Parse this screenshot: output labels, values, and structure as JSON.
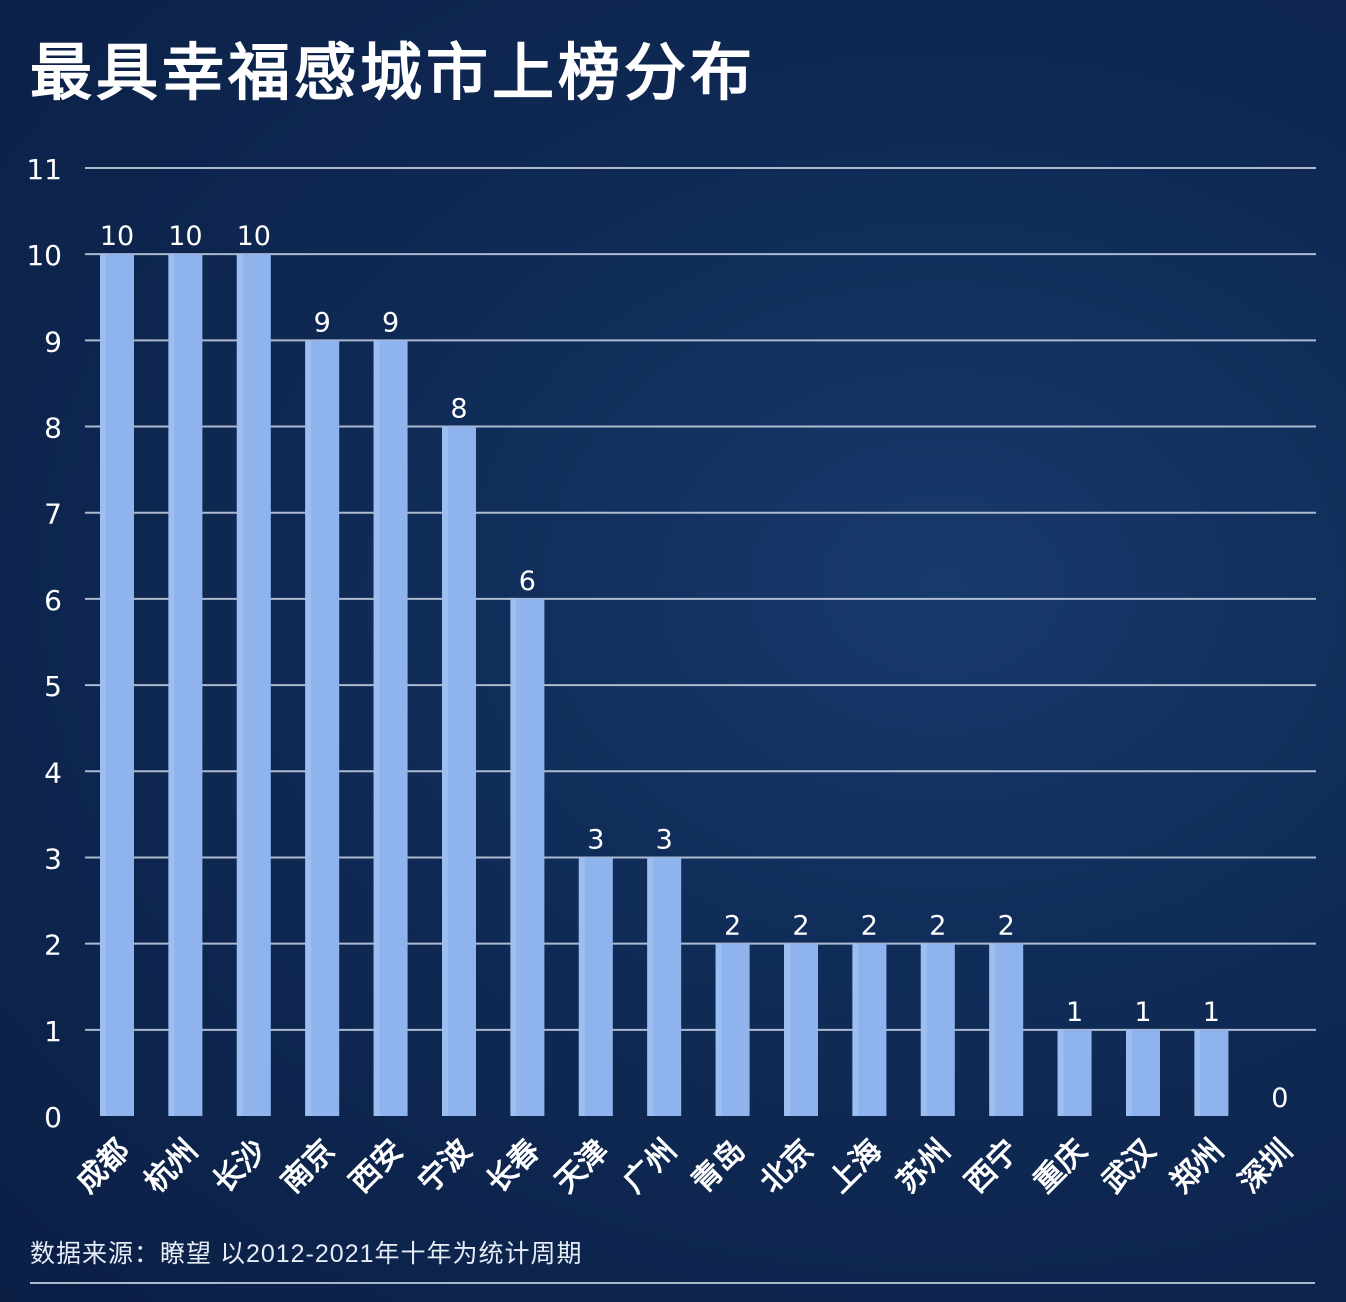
{
  "title": "最具幸福感城市上榜分布",
  "footer": "数据来源：瞭望 以2012-2021年十年为统计周期",
  "colors": {
    "background": "#0f2a55",
    "bar": "#8fb3ec",
    "bar_highlight": "#a7c4f3",
    "grid": "#c9d3e4",
    "text": "#ffffff"
  },
  "chart_data": {
    "type": "bar",
    "categories": [
      "成都",
      "杭州",
      "长沙",
      "南京",
      "西安",
      "宁波",
      "长春",
      "天津",
      "广州",
      "青岛",
      "北京",
      "上海",
      "苏州",
      "西宁",
      "重庆",
      "武汉",
      "郑州",
      "深圳"
    ],
    "values": [
      10,
      10,
      10,
      9,
      9,
      8,
      6,
      3,
      3,
      2,
      2,
      2,
      2,
      2,
      1,
      1,
      1,
      0
    ],
    "ylim": [
      0,
      11
    ],
    "yticks": [
      "0",
      "1",
      "2",
      "3",
      "4",
      "5",
      "6",
      "7",
      "8",
      "9",
      "10",
      "11"
    ],
    "grid": true,
    "data_labels": true
  }
}
